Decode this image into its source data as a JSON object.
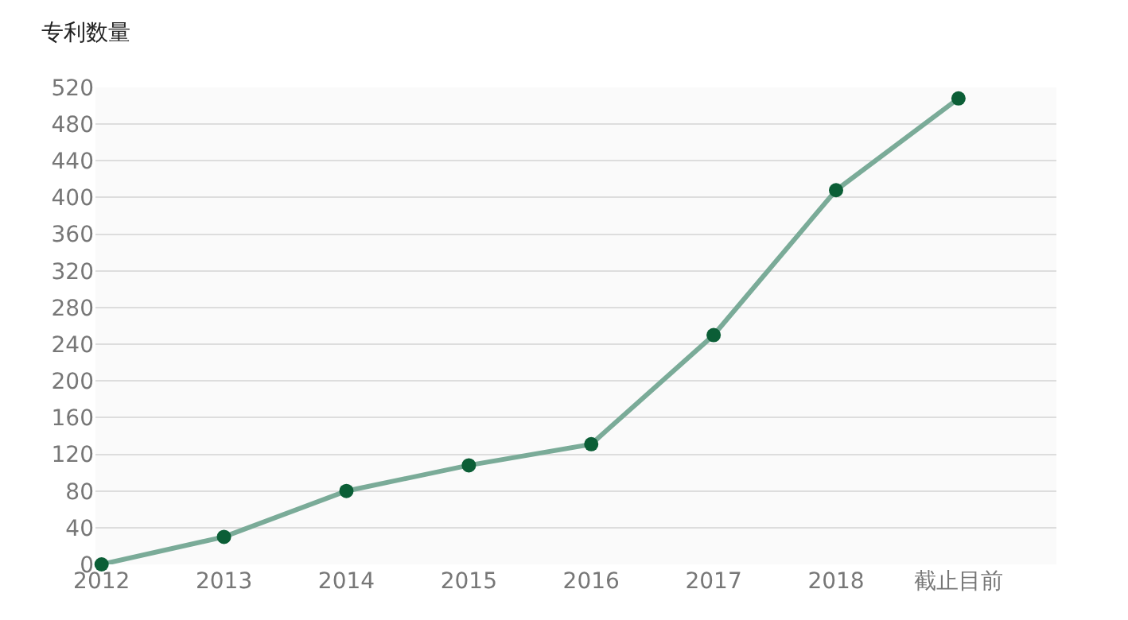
{
  "chart_data": {
    "type": "line",
    "ylabel": "专利数量",
    "categories": [
      "2012",
      "2013",
      "2014",
      "2015",
      "2016",
      "2017",
      "2018",
      "截止目前"
    ],
    "series": [
      {
        "color": "#7aab98",
        "values": [
          0,
          30,
          80,
          108,
          131,
          250,
          408,
          508
        ]
      }
    ],
    "marker": "circle",
    "line_style": "solid",
    "ylim": [
      0,
      520
    ],
    "yticks": [
      0,
      40,
      80,
      120,
      160,
      200,
      240,
      280,
      320,
      360,
      400,
      440,
      480,
      520
    ],
    "grid": "y",
    "legend": false
  }
}
